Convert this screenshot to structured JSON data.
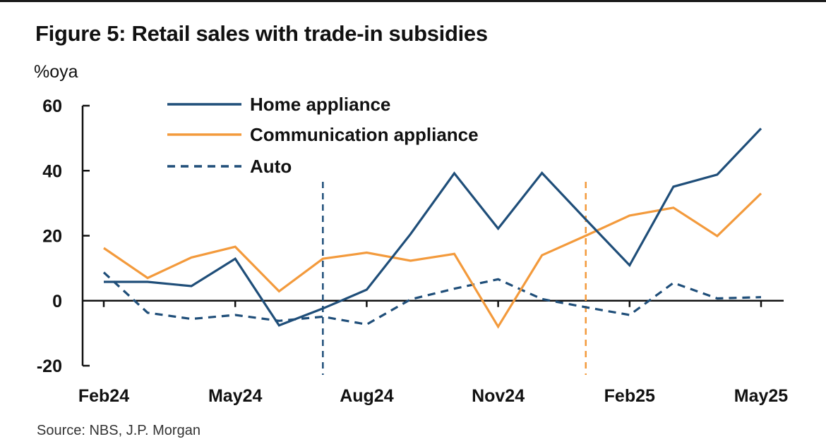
{
  "title": "Figure 5: Retail sales with trade-in subsidies",
  "unit_label": "%oya",
  "source": "Source: NBS, J.P. Morgan",
  "colors": {
    "home": "#1f4e79",
    "communication": "#f39a3c",
    "auto": "#1f4e79",
    "axis": "#111111"
  },
  "chart_data": {
    "type": "line",
    "title": "Figure 5: Retail sales with trade-in subsidies",
    "ylabel": "%oya",
    "xlabel": "",
    "ylim": [
      -20,
      60
    ],
    "yticks": [
      -20,
      0,
      20,
      40,
      60
    ],
    "x": [
      "Feb24",
      "Mar24",
      "Apr24",
      "May24",
      "Jun24",
      "Jul24",
      "Aug24",
      "Sep24",
      "Oct24",
      "Nov24",
      "Dec24",
      "Jan25",
      "Feb25",
      "Mar25",
      "Apr25",
      "May25"
    ],
    "xtick_labels": [
      "Feb24",
      "May24",
      "Aug24",
      "Nov24",
      "Feb25",
      "May25"
    ],
    "legend": "top-left",
    "grid": false,
    "series": [
      {
        "name": "Home appliance",
        "style": "solid",
        "values": [
          5.8,
          5.8,
          4.5,
          12.9,
          -7.6,
          -2.4,
          3.4,
          20.5,
          39.2,
          22.2,
          39.3,
          25.0,
          10.9,
          35.1,
          38.8,
          53.0
        ]
      },
      {
        "name": "Communication appliance",
        "style": "solid",
        "values": [
          16.2,
          7.0,
          13.3,
          16.6,
          2.9,
          12.9,
          14.8,
          12.3,
          14.4,
          -8.0,
          14.0,
          20.0,
          26.2,
          28.6,
          19.9,
          33.0
        ]
      },
      {
        "name": "Auto",
        "style": "dashed",
        "values": [
          8.7,
          -3.7,
          -5.6,
          -4.4,
          -6.2,
          -4.9,
          -7.3,
          0.4,
          3.7,
          6.6,
          0.5,
          -2.0,
          -4.4,
          5.5,
          0.7,
          1.1
        ]
      }
    ],
    "markers": [
      {
        "x": "Jul24",
        "color": "blue"
      },
      {
        "x": "Jan25",
        "color": "orange"
      }
    ]
  }
}
